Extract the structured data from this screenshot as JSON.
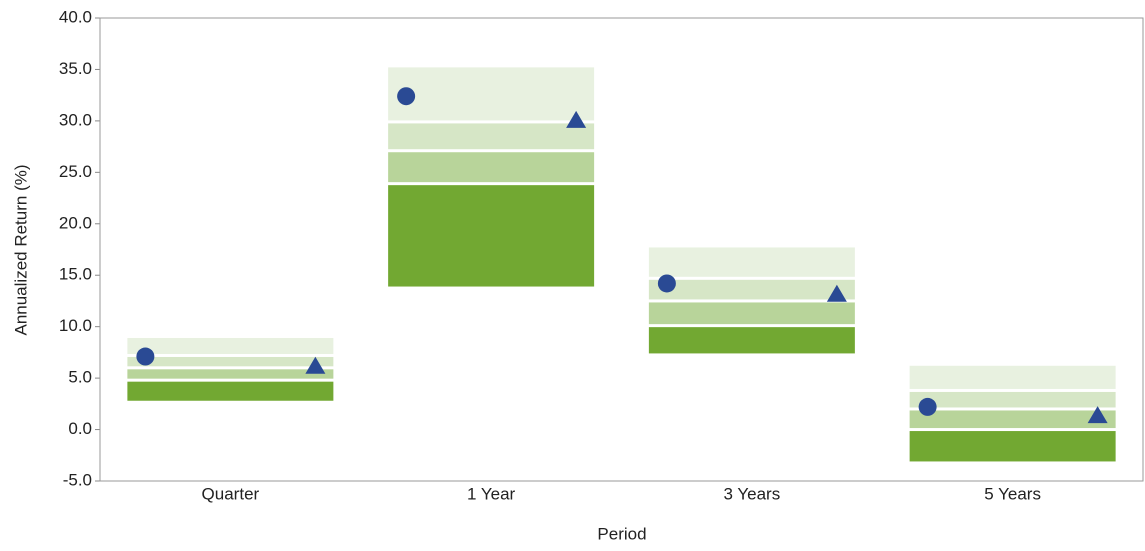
{
  "chart_data": {
    "type": "floating_range",
    "x_label": "Period",
    "y_label": "Annualized Return (%)",
    "categories": [
      "Quarter",
      "1 Year",
      "3 Years",
      "5 Years"
    ],
    "ranges": [
      [
        2.8,
        4.8,
        6.0,
        7.2,
        8.9
      ],
      [
        13.9,
        23.9,
        27.1,
        29.9,
        35.2
      ],
      [
        7.4,
        10.1,
        12.5,
        14.7,
        17.7
      ],
      [
        -3.1,
        0.0,
        2.0,
        3.8,
        6.2
      ]
    ],
    "range_colors": [
      "#72a832",
      "#b8d49a",
      "#d6e6c6",
      "#e8f1e0"
    ],
    "series": [
      {
        "marker": "circle",
        "color": "#2a4a94",
        "values": [
          7.1,
          32.4,
          14.2,
          2.2
        ]
      },
      {
        "marker": "triangle",
        "color": "#2a4a94",
        "values": [
          6.2,
          30.1,
          13.2,
          1.4
        ]
      }
    ],
    "ylim": [
      -5,
      40
    ],
    "yticks": [
      {
        "value": -5,
        "label": "-5.0"
      },
      {
        "value": 0,
        "label": "0.0"
      },
      {
        "value": 5,
        "label": "5.0"
      },
      {
        "value": 10,
        "label": "10.0"
      },
      {
        "value": 15,
        "label": "15.0"
      },
      {
        "value": 20,
        "label": "20.0"
      },
      {
        "value": 25,
        "label": "25.0"
      },
      {
        "value": 30,
        "label": "30.0"
      },
      {
        "value": 35,
        "label": "35.0"
      },
      {
        "value": 40,
        "label": "40.0"
      }
    ]
  }
}
